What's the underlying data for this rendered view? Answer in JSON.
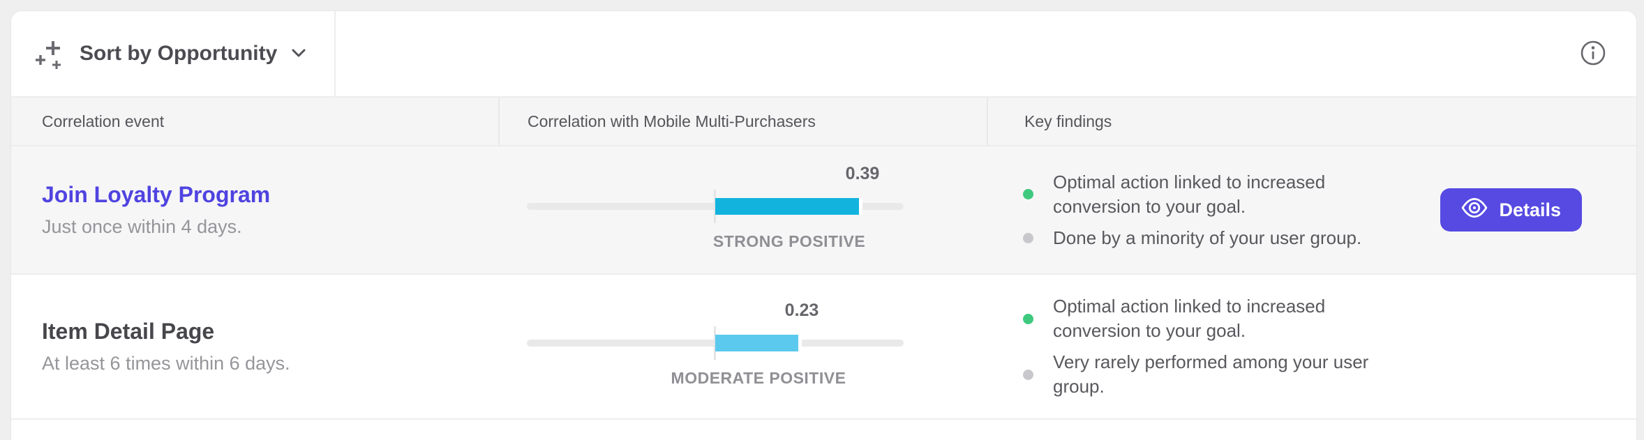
{
  "toolbar": {
    "sort_label": "Sort by Opportunity",
    "sparkles_icon": "ai-sparkles-plus",
    "info_icon": "info-circle"
  },
  "table": {
    "columns": [
      "Correlation event",
      "Correlation with Mobile Multi-Purchasers",
      "Key findings"
    ],
    "correlation_scale": {
      "min": -0.5,
      "max": 0.5,
      "center": 0
    },
    "rows": [
      {
        "event": "Join Loyalty Program",
        "event_is_link": true,
        "frequency": "Just once within 4 days.",
        "correlation": {
          "value": 0.39,
          "value_label": "0.39",
          "scale_half": 0.5,
          "strength_label": "STRONG POSITIVE",
          "bar_color": "#12b4de"
        },
        "findings": [
          {
            "status_color": "#3ec97f",
            "status": "positive",
            "text": "Optimal action linked to increased conversion to your goal."
          },
          {
            "status_color": "#c8c8cc",
            "status": "neutral",
            "text": "Done by a minority of your user group."
          }
        ],
        "action_label": "Details"
      },
      {
        "event": "Item Detail Page",
        "event_is_link": false,
        "frequency": "At least 6 times within 6 days.",
        "correlation": {
          "value": 0.23,
          "value_label": "0.23",
          "scale_half": 0.5,
          "strength_label": "MODERATE POSITIVE",
          "bar_color": "#5bc9ee"
        },
        "findings": [
          {
            "status_color": "#3ec97f",
            "status": "positive",
            "text": "Optimal action linked to increased conversion to your goal."
          },
          {
            "status_color": "#c8c8cc",
            "status": "neutral",
            "text": "Very rarely performed among your user group."
          }
        ]
      }
    ]
  },
  "colors": {
    "accent": "#564ae2",
    "link": "#4f43e0",
    "bar_strong": "#12b4de",
    "bar_moderate": "#5bc9ee",
    "dot_positive": "#3ec97f",
    "dot_neutral": "#c8c8cc",
    "page_bg": "#efeff0",
    "header_bg": "#f5f5f6"
  }
}
